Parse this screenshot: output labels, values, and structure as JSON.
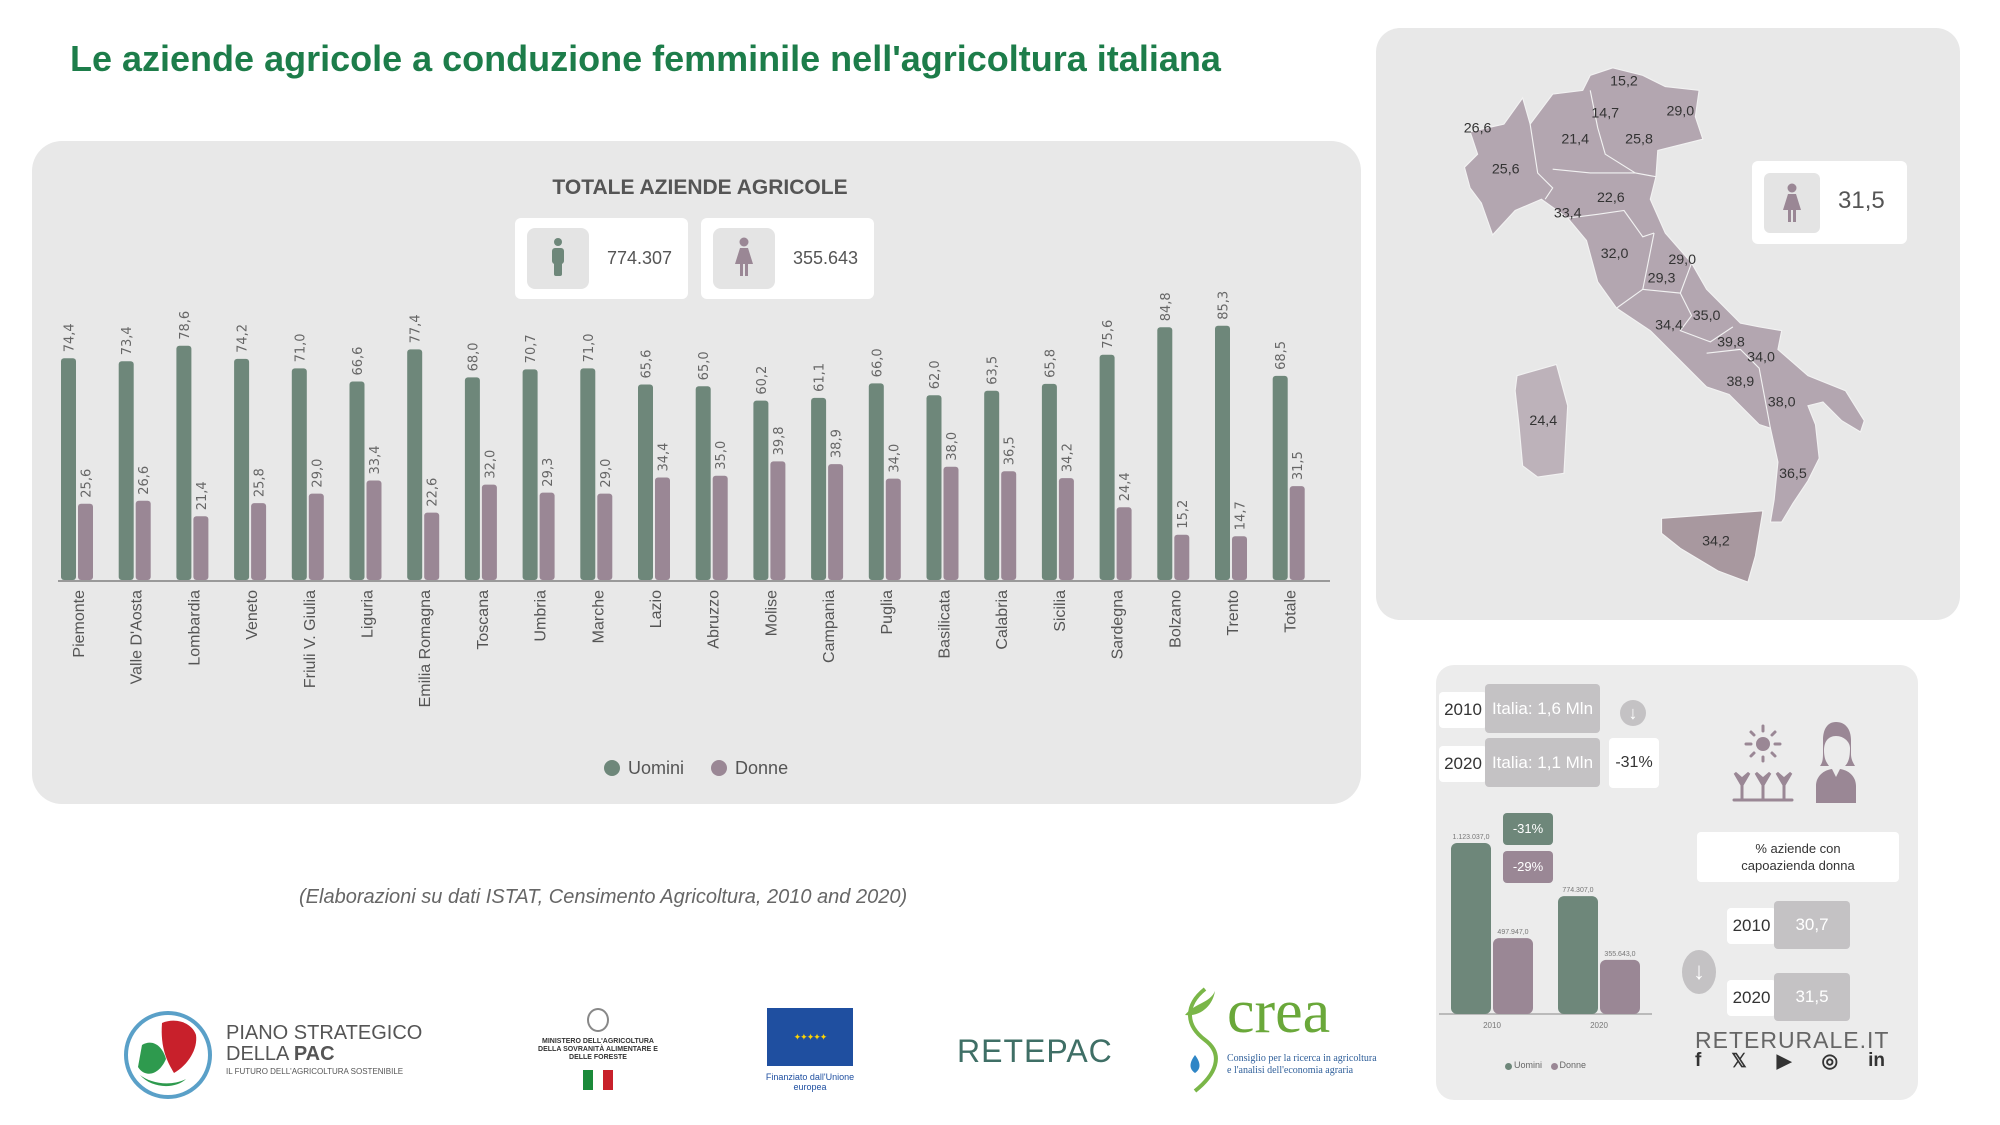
{
  "title": "Le aziende agricole a conduzione femminile nell'agricoltura italiana",
  "colors": {
    "uomini": "#6e877a",
    "donne": "#9a8795",
    "title": "#1d7d4a",
    "map_fill": "#b3a6b0"
  },
  "stats": {
    "men_icon": "man-icon",
    "men_total": "774.307",
    "women_icon": "woman-icon",
    "women_total": "355.643"
  },
  "chart_data": {
    "type": "bar",
    "title": "TOTALE AZIENDE AGRICOLE",
    "categories": [
      "Piemonte",
      "Valle D'Aosta",
      "Lombardia",
      "Veneto",
      "Friuli V. Giulia",
      "Liguria",
      "Emilia Romagna",
      "Toscana",
      "Umbria",
      "Marche",
      "Lazio",
      "Abruzzo",
      "Molise",
      "Campania",
      "Puglia",
      "Basilicata",
      "Calabria",
      "Sicilia",
      "Sardegna",
      "Bolzano",
      "Trento",
      "Totale"
    ],
    "series": [
      {
        "name": "Uomini",
        "values": [
          74.4,
          73.4,
          78.6,
          74.2,
          71.0,
          66.6,
          77.4,
          68.0,
          70.7,
          71.0,
          65.6,
          65.0,
          60.2,
          61.1,
          66.0,
          62.0,
          63.5,
          65.8,
          75.6,
          84.8,
          85.3,
          68.5
        ]
      },
      {
        "name": "Donne",
        "values": [
          25.6,
          26.6,
          21.4,
          25.8,
          29.0,
          33.4,
          22.6,
          32.0,
          29.3,
          29.0,
          34.4,
          35.0,
          39.8,
          38.9,
          34.0,
          38.0,
          36.5,
          34.2,
          24.4,
          15.2,
          14.7,
          31.5
        ]
      }
    ],
    "ylim": [
      0,
      100
    ],
    "legend": "bottom",
    "grid": false
  },
  "source": "(Elaborazioni su dati ISTAT, Censimento Agricoltura, 2010 and 2020)",
  "map": {
    "national_value": "31,5",
    "regions": [
      {
        "name": "Bolzano",
        "value": "15,2"
      },
      {
        "name": "Trento",
        "value": "14,7"
      },
      {
        "name": "Friuli V. Giulia",
        "value": "29,0"
      },
      {
        "name": "Valle D'Aosta",
        "value": "26,6"
      },
      {
        "name": "Lombardia",
        "value": "21,4"
      },
      {
        "name": "Veneto",
        "value": "25,8"
      },
      {
        "name": "Piemonte",
        "value": "25,6"
      },
      {
        "name": "Emilia Romagna",
        "value": "22,6"
      },
      {
        "name": "Liguria",
        "value": "33,4"
      },
      {
        "name": "Toscana",
        "value": "32,0"
      },
      {
        "name": "Marche",
        "value": "29,0"
      },
      {
        "name": "Umbria",
        "value": "29,3"
      },
      {
        "name": "Abruzzo",
        "value": "35,0"
      },
      {
        "name": "Lazio",
        "value": "34,4"
      },
      {
        "name": "Molise",
        "value": "39,8"
      },
      {
        "name": "Puglia",
        "value": "34,0"
      },
      {
        "name": "Campania",
        "value": "38,9"
      },
      {
        "name": "Basilicata",
        "value": "38,0"
      },
      {
        "name": "Sardegna",
        "value": "24,4"
      },
      {
        "name": "Calabria",
        "value": "36,5"
      },
      {
        "name": "Sicilia",
        "value": "34,2"
      }
    ]
  },
  "info": {
    "row2010_year": "2010",
    "row2010_value": "Italia: 1,6 Mln",
    "row2020_year": "2020",
    "row2020_value": "Italia: 1,1 Mln",
    "change": "-31%",
    "mini_chart": {
      "type": "bar",
      "categories": [
        "2010",
        "2020"
      ],
      "series": [
        {
          "name": "Uomini",
          "values": [
            1123037.0,
            774307.0
          ],
          "labels": [
            "1.123.037,0",
            "774.307,0"
          ]
        },
        {
          "name": "Donne",
          "values": [
            497947.0,
            355643.0
          ],
          "labels": [
            "497.947,0",
            "355.643,0"
          ]
        }
      ],
      "change_men": "-31%",
      "change_women": "-29%",
      "legend": [
        "Uomini",
        "Donne"
      ]
    },
    "pct_label": "% aziende con capoazienda donna",
    "pct2010_year": "2010",
    "pct2010_value": "30,7",
    "pct2020_year": "2020",
    "pct2020_value": "31,5",
    "brand": "RETERURALE.IT",
    "social": [
      "f",
      "𝕏",
      "▶",
      "◎",
      "in"
    ]
  },
  "logos": {
    "pac": {
      "line1": "PIANO STRATEGICO",
      "line2a": "DELLA ",
      "line2b": "PAC",
      "line3": "IL FUTURO DELL'AGRICOLTURA SOSTENIBILE"
    },
    "ministero": "MINISTERO DELL'AGRICOLTURA DELLA SOVRANITÀ ALIMENTARE E DELLE FORESTE",
    "eu": "Finanziato dall'Unione europea",
    "retepac": "RETEPAC",
    "crea": {
      "name": "crea",
      "sub1": "Consiglio per la ricerca in agricoltura",
      "sub2": "e l'analisi dell'economia agraria"
    }
  }
}
